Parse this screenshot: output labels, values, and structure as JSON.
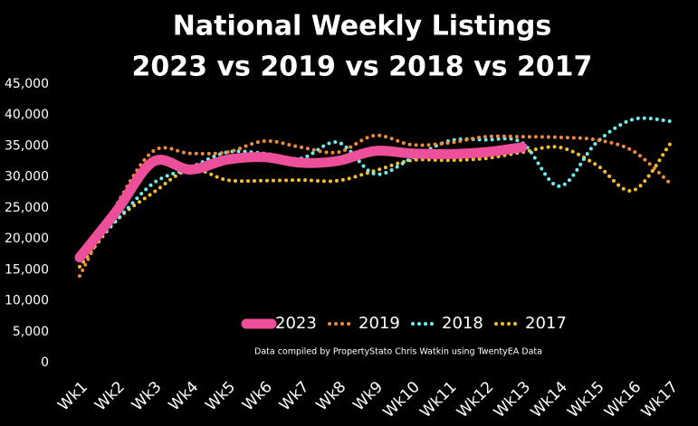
{
  "chart_data": {
    "type": "line",
    "title": "National Weekly Listings",
    "subtitle": "2023 vs 2019 vs 2018 vs 2017",
    "annotation": "Data compiled by PropertyStato Chris Watkin using TwentyEA Data",
    "categories": [
      "Wk1",
      "Wk2",
      "Wk3",
      "Wk4",
      "Wk5",
      "Wk6",
      "Wk7",
      "Wk8",
      "Wk9",
      "Wk10",
      "Wk11",
      "Wk12",
      "Wk13",
      "Wk14",
      "Wk15",
      "Wk16",
      "Wk17"
    ],
    "series": [
      {
        "name": "2023",
        "color": "#ee4f9a",
        "style": "solid",
        "values": [
          17000,
          24500,
          32500,
          31200,
          32800,
          33200,
          32300,
          32600,
          34200,
          33800,
          33700,
          34000,
          34800,
          null,
          null,
          null,
          null
        ]
      },
      {
        "name": "2019",
        "color": "#f08a3c",
        "style": "dotted",
        "values": [
          14000,
          25500,
          34200,
          33800,
          34000,
          35800,
          34800,
          34000,
          36700,
          35200,
          35500,
          36500,
          36500,
          36400,
          36000,
          34200,
          29000
        ]
      },
      {
        "name": "2018",
        "color": "#6ff0f0",
        "style": "dotted",
        "values": [
          17000,
          23000,
          29000,
          31500,
          34000,
          33800,
          33000,
          35600,
          30500,
          33000,
          35800,
          36000,
          35500,
          28500,
          35500,
          39300,
          39000
        ]
      },
      {
        "name": "2017",
        "color": "#f5c02c",
        "style": "dotted",
        "values": [
          15500,
          23000,
          27500,
          31200,
          29500,
          29400,
          29500,
          29400,
          31000,
          32700,
          32700,
          33000,
          34000,
          34800,
          32000,
          27800,
          35300
        ]
      }
    ],
    "ylim": [
      0,
      45000
    ],
    "yticks": [
      0,
      {
        "value": 5000,
        "label": "5,000"
      },
      {
        "value": 10000,
        "label": "10,000"
      },
      {
        "value": 15000,
        "label": "15,000"
      },
      {
        "value": 20000,
        "label": "20,000"
      },
      {
        "value": 25000,
        "label": "25,000"
      },
      {
        "value": 30000,
        "label": "30,000"
      },
      {
        "value": 35000,
        "label": "35,000"
      },
      {
        "value": 40000,
        "label": "40,000"
      },
      {
        "value": 45000,
        "label": "45,000"
      }
    ],
    "legend": "bottom",
    "grid": false
  }
}
